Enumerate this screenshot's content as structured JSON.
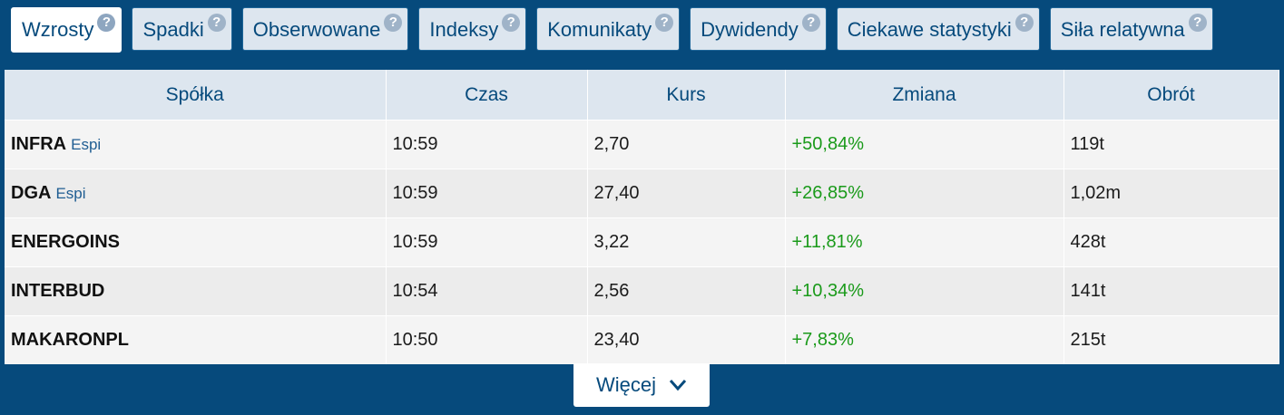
{
  "tabs": [
    {
      "label": "Wzrosty",
      "active": true
    },
    {
      "label": "Spadki"
    },
    {
      "label": "Obserwowane"
    },
    {
      "label": "Indeksy"
    },
    {
      "label": "Komunikaty"
    },
    {
      "label": "Dywidendy"
    },
    {
      "label": "Ciekawe statystyki"
    },
    {
      "label": "Siła relatywna"
    }
  ],
  "help_glyph": "?",
  "table": {
    "headers": [
      "Spółka",
      "Czas",
      "Kurs",
      "Zmiana",
      "Obrót"
    ],
    "rows": [
      {
        "ticker": "INFRA",
        "tag": "Espi",
        "time": "10:59",
        "price": "2,70",
        "change": "+50,84%",
        "turnover": "119t"
      },
      {
        "ticker": "DGA",
        "tag": "Espi",
        "time": "10:59",
        "price": "27,40",
        "change": "+26,85%",
        "turnover": "1,02m"
      },
      {
        "ticker": "ENERGOINS",
        "tag": "",
        "time": "10:59",
        "price": "3,22",
        "change": "+11,81%",
        "turnover": "428t"
      },
      {
        "ticker": "INTERBUD",
        "tag": "",
        "time": "10:54",
        "price": "2,56",
        "change": "+10,34%",
        "turnover": "141t"
      },
      {
        "ticker": "MAKARONPL",
        "tag": "",
        "time": "10:50",
        "price": "23,40",
        "change": "+7,83%",
        "turnover": "215t"
      }
    ]
  },
  "more_label": "Więcej",
  "colors": {
    "accent": "#064a7c",
    "positive": "#1a9a1a",
    "tab_bg": "#dde6ef"
  }
}
